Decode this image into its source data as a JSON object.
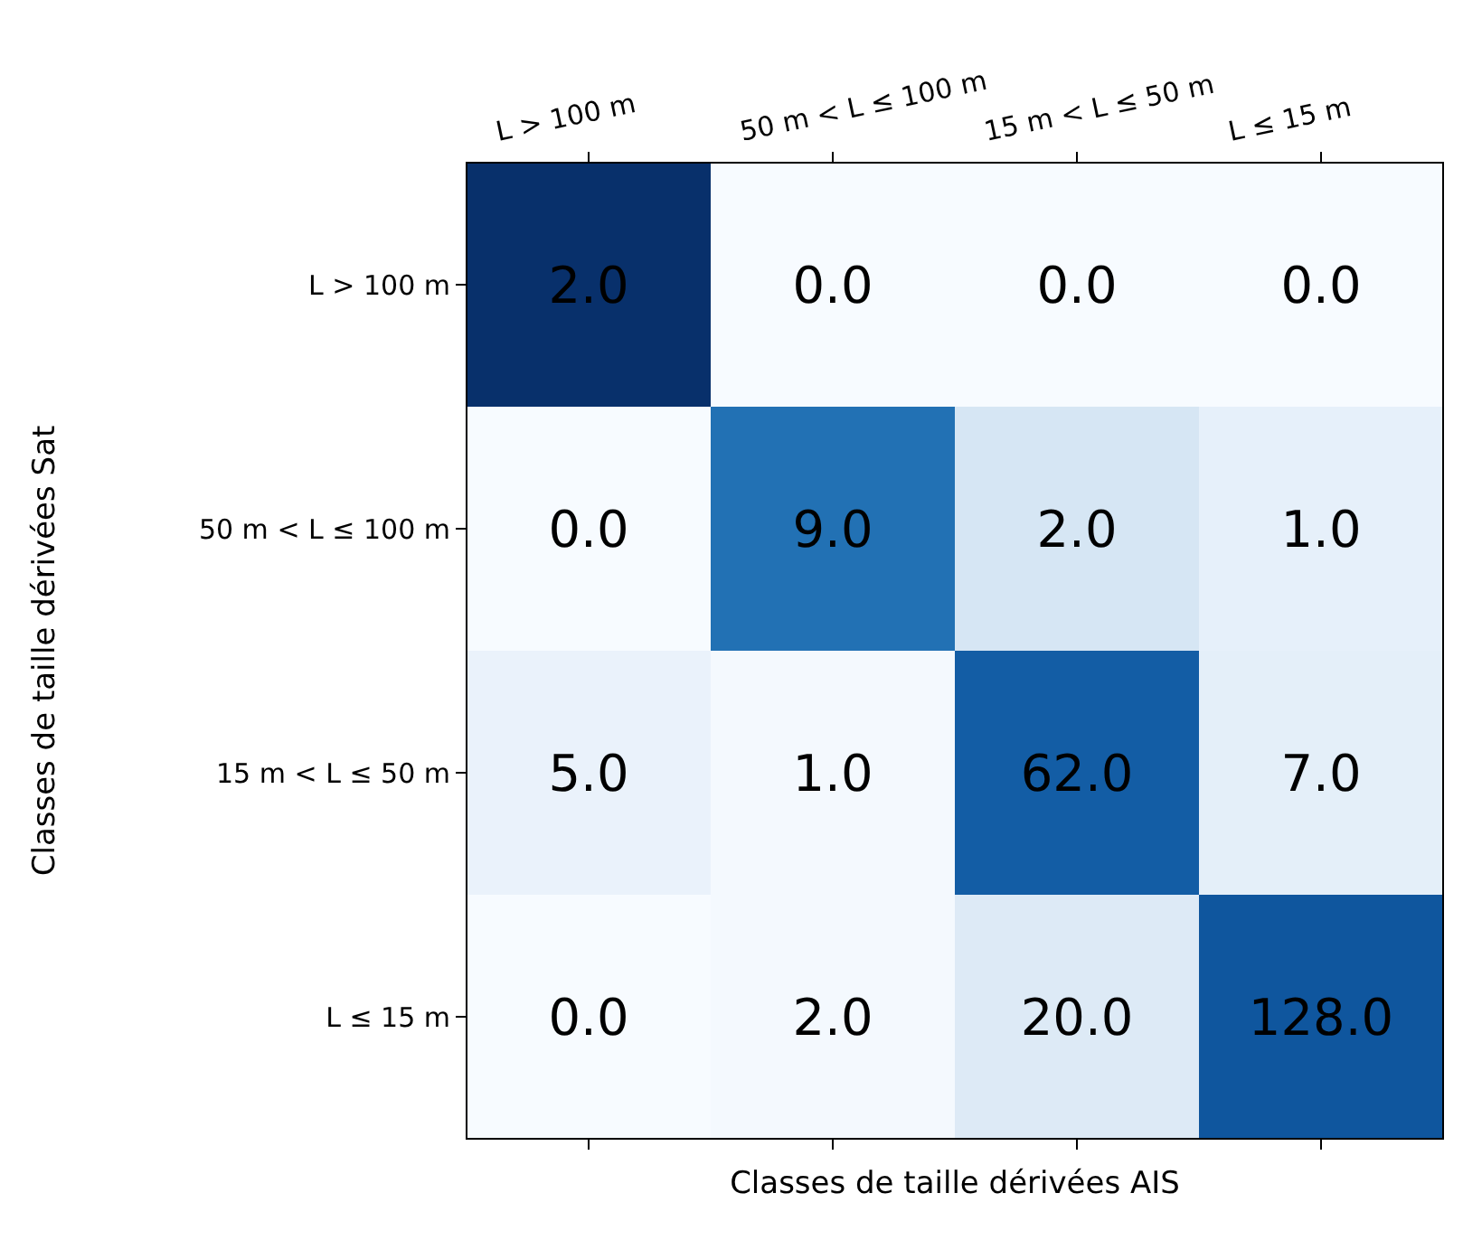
{
  "chart_data": {
    "type": "heatmap",
    "xlabel": "Classes de taille dérivées AIS",
    "ylabel": "Classes de taille dérivées Sat",
    "categories": [
      "L > 100 m",
      "50 m < L ≤ 100 m",
      "15 m < L ≤ 50 m",
      "L ≤ 15 m"
    ],
    "y_categories": [
      "L > 100 m",
      "50 m < L ≤ 100 m",
      "15 m < L ≤ 50 m",
      "L ≤ 15 m"
    ],
    "cells": [
      [
        2,
        0,
        0,
        0
      ],
      [
        0,
        9,
        2,
        1
      ],
      [
        5,
        1,
        62,
        7
      ],
      [
        0,
        2,
        20,
        128
      ]
    ],
    "cell_labels": [
      [
        "2.0",
        "0.0",
        "0.0",
        "0.0"
      ],
      [
        "0.0",
        "9.0",
        "2.0",
        "1.0"
      ],
      [
        "5.0",
        "1.0",
        "62.0",
        "7.0"
      ],
      [
        "0.0",
        "2.0",
        "20.0",
        "128.0"
      ]
    ]
  }
}
